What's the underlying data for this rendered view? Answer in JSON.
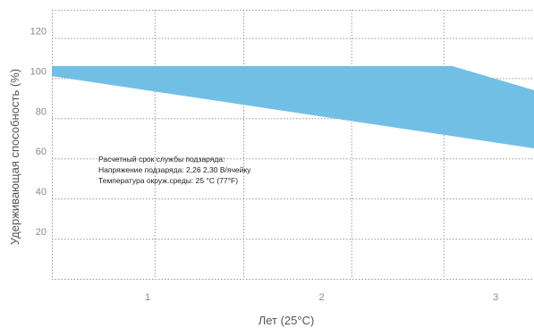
{
  "chart_data": {
    "type": "area",
    "title": "",
    "xlabel": "Лет (25°C)",
    "ylabel": "Удерживающая способность (%)",
    "xlim": [
      0.45,
      3.22
    ],
    "ylim": [
      0,
      134
    ],
    "x_ticks": [
      1,
      2,
      3
    ],
    "y_ticks": [
      20,
      40,
      60,
      80,
      100,
      120
    ],
    "x_grid": [
      0.45,
      1.04,
      1.55,
      2.17,
      2.7
    ],
    "y_grid": [
      0,
      20,
      40,
      60,
      80,
      100,
      120,
      134
    ],
    "grid": true,
    "band_color": "#72bfe6",
    "band": {
      "upper": [
        [
          0.45,
          106
        ],
        [
          2.75,
          106
        ],
        [
          3.22,
          94
        ]
      ],
      "lower": [
        [
          0.45,
          101
        ],
        [
          3.22,
          65
        ]
      ]
    },
    "annotations": [
      "Расчетный срок службы подзаряда:",
      "Напряжение подзаряда: 2,26 2,30 В/ячейку",
      "Температура окруж.среды: 25 °C (77°F)"
    ]
  }
}
